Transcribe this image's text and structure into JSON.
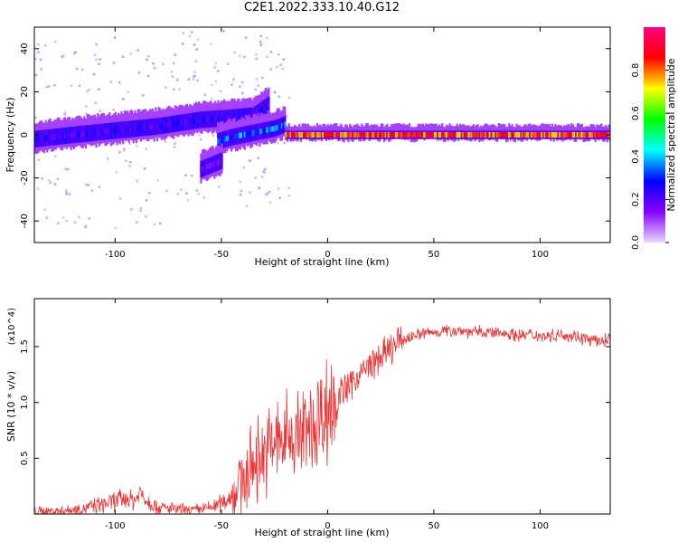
{
  "title": "C2E1.2022.333.10.40.G12",
  "chart_data": [
    {
      "type": "heatmap",
      "xlabel": "Height of straight line (km)",
      "ylabel": "Frequency (Hz)",
      "xlim": [
        -138,
        133
      ],
      "ylim": [
        -50,
        50
      ],
      "xticks": [
        -100,
        -50,
        0,
        50,
        100
      ],
      "yticks": [
        -40,
        -20,
        0,
        20,
        40
      ],
      "colorbar": {
        "label": "Normalized spectral amplitude",
        "range": [
          0,
          1
        ],
        "ticks": [
          "0.0",
          "0.2",
          "0.4",
          "0.6",
          "0.8"
        ],
        "colors": [
          "#e8d8ff",
          "#8a00ff",
          "#0000ff",
          "#00ffff",
          "#00ff00",
          "#ffff00",
          "#ff0000",
          "#ff0080"
        ]
      },
      "ridges": [
        {
          "x": [
            -138,
            -120,
            -100,
            -80,
            -60,
            -45,
            -35,
            -28
          ],
          "freq": [
            -2,
            0,
            2,
            4,
            7,
            8,
            9,
            14
          ],
          "amplitude": 0.25
        },
        {
          "x": [
            -52,
            -45,
            -35,
            -25,
            -20
          ],
          "freq": [
            -3,
            -1,
            1,
            3,
            5
          ],
          "amplitude": 0.35
        },
        {
          "x": [
            -60,
            -55,
            -50
          ],
          "freq": [
            -16,
            -14,
            -12
          ],
          "amplitude": 0.2
        },
        {
          "x": [
            -20,
            0,
            20,
            40,
            60,
            80,
            100,
            133
          ],
          "freq": [
            0,
            0,
            0,
            0,
            0,
            0,
            0,
            0
          ],
          "amplitude": 0.95
        }
      ]
    },
    {
      "type": "line",
      "xlabel": "Height of straight line (km)",
      "ylabel": "SNR (10 * v/v)",
      "y_exponent": "(x10^4)",
      "xlim": [
        -138,
        133
      ],
      "ylim": [
        0,
        1.93
      ],
      "xticks": [
        -100,
        -50,
        0,
        50,
        100
      ],
      "yticks": [
        0.5,
        1.0,
        1.5
      ],
      "ytick_labels": [
        "0.5",
        "1.0",
        "1.5"
      ],
      "color": "#ee3333",
      "series": [
        {
          "x": [
            -138,
            -125,
            -115,
            -105,
            -100,
            -95,
            -90,
            -88,
            -85,
            -80,
            -75,
            -70,
            -65,
            -60,
            -55,
            -50,
            -45,
            -40,
            -35,
            -30,
            -25,
            -20,
            -15,
            -10,
            -5,
            0,
            5,
            10,
            15,
            20,
            25,
            30,
            35,
            40,
            45,
            50,
            55,
            60,
            65,
            70,
            75,
            80,
            85,
            90,
            95,
            100,
            105,
            110,
            115,
            120,
            125,
            130,
            133
          ],
          "values": [
            0.02,
            0.03,
            0.05,
            0.09,
            0.12,
            0.14,
            0.13,
            0.2,
            0.12,
            0.06,
            0.05,
            0.04,
            0.03,
            0.04,
            0.06,
            0.1,
            0.17,
            0.3,
            0.45,
            0.55,
            0.62,
            0.68,
            0.72,
            0.72,
            0.85,
            0.95,
            1.05,
            1.15,
            1.25,
            1.33,
            1.4,
            1.48,
            1.55,
            1.6,
            1.62,
            1.63,
            1.64,
            1.65,
            1.64,
            1.63,
            1.63,
            1.62,
            1.62,
            1.6,
            1.61,
            1.6,
            1.6,
            1.61,
            1.6,
            1.58,
            1.55,
            1.55,
            1.58
          ]
        }
      ]
    }
  ]
}
